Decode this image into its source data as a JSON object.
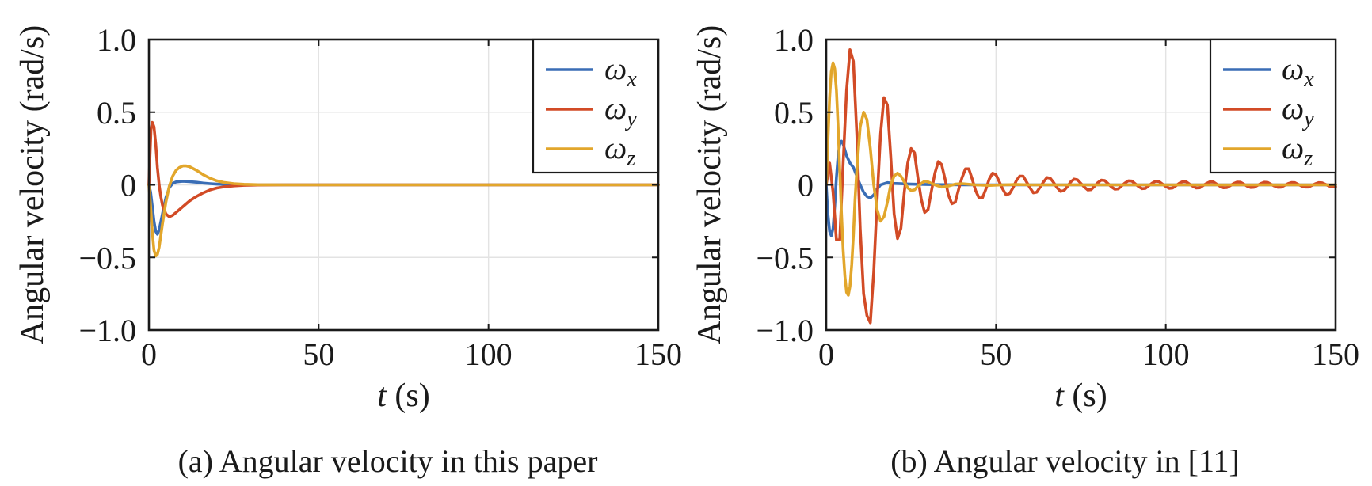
{
  "colors": {
    "wx": "#3a6db5",
    "wy": "#d24b26",
    "wz": "#e2a62b"
  },
  "chart_data": [
    {
      "type": "line",
      "caption": "(a) Angular velocity in this paper",
      "xlabel": "t (s)",
      "ylabel": "Angular velocity (rad/s)",
      "xlim": [
        0,
        150
      ],
      "ylim": [
        -1.0,
        1.0
      ],
      "xticks": [
        0,
        50,
        100,
        150
      ],
      "xtick_labels": [
        "0",
        "50",
        "100",
        "150"
      ],
      "yticks": [
        1.0,
        0.5,
        0,
        -0.5,
        -1.0
      ],
      "ytick_labels": [
        "1.0",
        "0.5",
        "0",
        "−0.5",
        "−1.0"
      ],
      "grid": true,
      "legend_position": "top-right",
      "series": [
        {
          "name": "ωx",
          "symbol": "ω",
          "subscript": "x",
          "color_key": "wx",
          "x": [
            0,
            0.5,
            1,
            1.5,
            2,
            2.5,
            3,
            4,
            5,
            6,
            7,
            8,
            10,
            12,
            14,
            16,
            18,
            20,
            24,
            28,
            32,
            40,
            60,
            100,
            150
          ],
          "y": [
            0,
            -0.05,
            -0.15,
            -0.25,
            -0.32,
            -0.34,
            -0.31,
            -0.2,
            -0.09,
            -0.02,
            0.01,
            0.02,
            0.025,
            0.022,
            0.018,
            0.012,
            0.008,
            0.005,
            0.002,
            0.001,
            0,
            0,
            0,
            0,
            0
          ]
        },
        {
          "name": "ωy",
          "symbol": "ω",
          "subscript": "y",
          "color_key": "wy",
          "x": [
            0,
            0.3,
            0.6,
            1,
            1.5,
            2,
            2.5,
            3,
            3.5,
            4,
            5,
            6,
            7,
            8,
            10,
            12,
            14,
            16,
            18,
            20,
            22,
            25,
            28,
            32,
            40,
            60,
            100,
            150
          ],
          "y": [
            0,
            0.2,
            0.38,
            0.43,
            0.4,
            0.28,
            0.12,
            0,
            -0.08,
            -0.14,
            -0.2,
            -0.22,
            -0.21,
            -0.19,
            -0.15,
            -0.11,
            -0.08,
            -0.055,
            -0.035,
            -0.022,
            -0.014,
            -0.007,
            -0.003,
            -0.001,
            0,
            0,
            0,
            0
          ]
        },
        {
          "name": "ωz",
          "symbol": "ω",
          "subscript": "z",
          "color_key": "wz",
          "x": [
            0,
            0.5,
            1,
            1.5,
            2,
            2.5,
            3,
            3.5,
            4,
            5,
            6,
            7,
            8,
            9,
            10,
            11,
            12,
            14,
            16,
            18,
            20,
            22,
            25,
            28,
            32,
            40,
            60,
            100,
            150
          ],
          "y": [
            0,
            -0.15,
            -0.33,
            -0.45,
            -0.49,
            -0.48,
            -0.43,
            -0.35,
            -0.27,
            -0.12,
            -0.01,
            0.06,
            0.1,
            0.12,
            0.13,
            0.13,
            0.125,
            0.1,
            0.07,
            0.045,
            0.028,
            0.017,
            0.008,
            0.004,
            0.001,
            0,
            0,
            0,
            0
          ]
        }
      ]
    },
    {
      "type": "line",
      "caption": "(b) Angular velocity in [11]",
      "xlabel": "t (s)",
      "ylabel": "Angular velocity (rad/s)",
      "xlim": [
        0,
        150
      ],
      "ylim": [
        -1.0,
        1.0
      ],
      "xticks": [
        0,
        50,
        100,
        150
      ],
      "xtick_labels": [
        "0",
        "50",
        "100",
        "150"
      ],
      "yticks": [
        1.0,
        0.5,
        0,
        -0.5,
        -1.0
      ],
      "ytick_labels": [
        "1.0",
        "0.5",
        "0",
        "−0.5",
        "−1.0"
      ],
      "grid": true,
      "legend_position": "top-right",
      "series": [
        {
          "name": "ωx",
          "symbol": "ω",
          "subscript": "x",
          "color_key": "wx",
          "x": [
            0,
            0.5,
            1,
            1.5,
            2,
            2.5,
            3,
            3.5,
            4,
            4.5,
            5,
            6,
            7,
            8,
            9,
            10,
            11,
            12,
            13,
            14,
            15,
            16,
            18,
            20,
            25,
            30,
            40,
            60,
            100,
            150
          ],
          "y": [
            0,
            -0.2,
            -0.32,
            -0.35,
            -0.3,
            -0.15,
            0.05,
            0.2,
            0.28,
            0.3,
            0.28,
            0.2,
            0.15,
            0.12,
            0.06,
            0.0,
            -0.05,
            -0.08,
            -0.09,
            -0.07,
            -0.03,
            0.0,
            0.015,
            0.01,
            0.005,
            0.002,
            0,
            0,
            0,
            0
          ]
        },
        {
          "name": "ωy",
          "symbol": "ω",
          "subscript": "y",
          "color_key": "wy",
          "x": [
            0,
            1,
            2,
            3,
            4,
            5,
            6,
            7,
            8,
            9,
            10,
            11,
            12,
            13,
            14,
            15,
            16,
            17,
            18,
            19,
            20,
            21,
            22,
            23,
            24,
            25,
            26,
            27,
            28,
            29,
            30,
            31,
            32,
            33,
            34,
            35,
            36,
            37,
            38,
            39,
            40,
            41,
            42,
            43,
            44,
            45,
            46,
            47,
            48,
            49,
            50,
            51,
            52,
            53,
            54,
            55,
            56,
            57,
            58,
            59,
            60,
            61,
            62,
            63,
            64,
            65,
            66,
            67,
            68,
            69,
            70,
            71,
            72,
            73,
            74,
            75,
            76,
            77,
            78,
            79,
            80,
            81,
            82,
            83,
            84,
            85,
            86,
            87,
            88,
            89,
            90,
            91,
            92,
            93,
            94,
            95,
            96,
            97,
            98,
            99,
            100,
            101,
            102,
            103,
            104,
            105,
            106,
            107,
            108,
            109,
            110,
            111,
            112,
            113,
            114,
            115,
            116,
            117,
            118,
            119,
            120,
            121,
            122,
            123,
            124,
            125,
            126,
            127,
            128,
            129,
            130,
            131,
            132,
            133,
            134,
            135,
            136,
            137,
            138,
            139,
            140,
            141,
            142,
            143,
            144,
            145,
            146,
            147,
            148,
            149,
            150
          ],
          "y": [
            0,
            0.15,
            -0.05,
            -0.38,
            -0.38,
            0.15,
            0.65,
            0.93,
            0.85,
            0.35,
            -0.3,
            -0.75,
            -0.9,
            -0.95,
            -0.6,
            -0.1,
            0.35,
            0.6,
            0.55,
            0.2,
            -0.2,
            -0.37,
            -0.3,
            -0.05,
            0.15,
            0.25,
            0.22,
            0.05,
            -0.1,
            -0.19,
            -0.17,
            -0.04,
            0.08,
            0.16,
            0.14,
            0.04,
            -0.07,
            -0.13,
            -0.12,
            -0.03,
            0.05,
            0.11,
            0.11,
            0.04,
            -0.04,
            -0.09,
            -0.09,
            -0.03,
            0.04,
            0.08,
            0.07,
            0.02,
            -0.03,
            -0.07,
            -0.06,
            -0.02,
            0.03,
            0.06,
            0.06,
            0.02,
            -0.02,
            -0.055,
            -0.05,
            -0.015,
            0.02,
            0.05,
            0.045,
            0.015,
            -0.02,
            -0.045,
            -0.04,
            -0.012,
            0.02,
            0.04,
            0.035,
            0.01,
            -0.015,
            -0.035,
            -0.033,
            -0.01,
            0.015,
            0.032,
            0.03,
            0.008,
            -0.014,
            -0.03,
            -0.028,
            -0.007,
            0.013,
            0.028,
            0.026,
            0.007,
            -0.012,
            -0.026,
            -0.024,
            -0.006,
            0.012,
            0.025,
            0.023,
            0.006,
            -0.011,
            -0.024,
            -0.022,
            -0.006,
            0.011,
            0.023,
            0.021,
            0.005,
            -0.01,
            -0.022,
            -0.02,
            -0.005,
            0.01,
            0.021,
            0.02,
            0.005,
            -0.01,
            -0.02,
            -0.019,
            -0.005,
            0.009,
            0.019,
            0.018,
            0.005,
            -0.009,
            -0.018,
            -0.017,
            -0.004,
            0.009,
            0.018,
            0.017,
            0.004,
            -0.008,
            -0.017,
            -0.016,
            -0.004,
            0.008,
            0.016,
            0.015,
            0.004,
            -0.008,
            -0.015,
            -0.015,
            -0.004,
            0.007,
            0.015,
            0.014,
            0.004,
            -0.007,
            -0.014,
            -0.013
          ]
        },
        {
          "name": "ωz",
          "symbol": "ω",
          "subscript": "z",
          "color_key": "wz",
          "x": [
            0,
            0.5,
            1,
            1.5,
            2,
            2.5,
            3,
            3.5,
            4,
            4.5,
            5,
            5.5,
            6,
            6.5,
            7,
            7.5,
            8,
            8.5,
            9,
            10,
            11,
            12,
            13,
            14,
            15,
            16,
            17,
            18,
            19,
            20,
            21,
            22,
            23,
            24,
            25,
            26,
            27,
            28,
            29,
            30,
            32,
            34,
            36,
            38,
            40,
            44,
            48,
            52,
            56,
            60,
            70,
            80,
            90,
            100,
            150
          ],
          "y": [
            0,
            0.3,
            0.6,
            0.78,
            0.84,
            0.8,
            0.65,
            0.4,
            0.1,
            -0.2,
            -0.45,
            -0.63,
            -0.74,
            -0.76,
            -0.7,
            -0.55,
            -0.35,
            -0.1,
            0.1,
            0.4,
            0.5,
            0.45,
            0.25,
            0.0,
            -0.17,
            -0.25,
            -0.22,
            -0.12,
            0.0,
            0.06,
            0.08,
            0.06,
            0.02,
            -0.02,
            -0.04,
            -0.035,
            -0.01,
            0.01,
            0.025,
            0.02,
            0.0,
            -0.015,
            -0.008,
            0.005,
            0.008,
            0.0,
            -0.004,
            0.0,
            0.002,
            0.0,
            0.0,
            0.0,
            0.0,
            0.0,
            0.0
          ]
        }
      ]
    }
  ]
}
